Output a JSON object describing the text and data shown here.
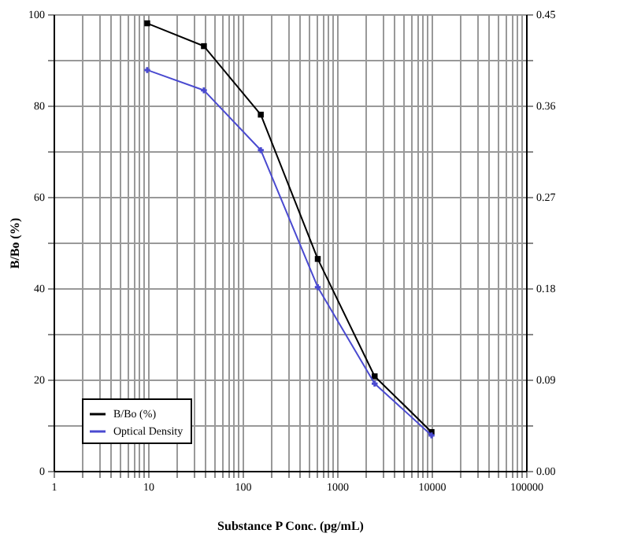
{
  "chart_data": {
    "type": "line",
    "xlabel": "Substance P Conc. (pg/mL)",
    "ylabel": "B/Bo (%)",
    "log": "x",
    "grid": true,
    "legend": "bottom left",
    "line_style": "solid",
    "xlim": [
      1,
      100000
    ],
    "xticks": [
      1,
      {
        "value": 2,
        "label": null
      },
      {
        "value": 3,
        "label": null
      },
      {
        "value": 4,
        "label": null
      },
      {
        "value": 5,
        "label": null
      },
      {
        "value": 6,
        "label": null
      },
      {
        "value": 7,
        "label": null
      },
      {
        "value": 8,
        "label": null
      },
      {
        "value": 9,
        "label": null
      },
      10,
      {
        "value": 20,
        "label": null
      },
      {
        "value": 30,
        "label": null
      },
      {
        "value": 40,
        "label": null
      },
      {
        "value": 50,
        "label": null
      },
      {
        "value": 60,
        "label": null
      },
      {
        "value": 70,
        "label": null
      },
      {
        "value": 80,
        "label": null
      },
      {
        "value": 90,
        "label": null
      },
      100,
      {
        "value": 200,
        "label": null
      },
      {
        "value": 300,
        "label": null
      },
      {
        "value": 400,
        "label": null
      },
      {
        "value": 500,
        "label": null
      },
      {
        "value": 600,
        "label": null
      },
      {
        "value": 700,
        "label": null
      },
      {
        "value": 800,
        "label": null
      },
      {
        "value": 900,
        "label": null
      },
      1000,
      {
        "value": 2000,
        "label": null
      },
      {
        "value": 3000,
        "label": null
      },
      {
        "value": 4000,
        "label": null
      },
      {
        "value": 5000,
        "label": null
      },
      {
        "value": 6000,
        "label": null
      },
      {
        "value": 7000,
        "label": null
      },
      {
        "value": 8000,
        "label": null
      },
      {
        "value": 9000,
        "label": null
      },
      10000,
      {
        "value": 20000,
        "label": null
      },
      {
        "value": 30000,
        "label": null
      },
      {
        "value": 40000,
        "label": null
      },
      {
        "value": 50000,
        "label": null
      },
      {
        "value": 60000,
        "label": null
      },
      {
        "value": 70000,
        "label": null
      },
      {
        "value": 80000,
        "label": null
      },
      {
        "value": 90000,
        "label": null
      },
      100000
    ],
    "ylim": [
      0,
      100
    ],
    "yticks": [
      0,
      {
        "value": 10,
        "label": null
      },
      20,
      {
        "value": 30,
        "label": null
      },
      40,
      {
        "value": 50,
        "label": null
      },
      60,
      {
        "value": 70,
        "label": null
      },
      80,
      {
        "value": 90,
        "label": null
      },
      100
    ],
    "y2lim": [
      0,
      0.45
    ],
    "y2ticks": [
      {
        "value": 0,
        "label": "0.00"
      },
      {
        "value": 0.045,
        "label": null
      },
      {
        "value": 0.09,
        "label": "0.09"
      },
      {
        "value": 0.135,
        "label": null
      },
      {
        "value": 0.18,
        "label": "0.18"
      },
      {
        "value": 0.225,
        "label": null
      },
      {
        "value": 0.27,
        "label": "0.27"
      },
      {
        "value": 0.315,
        "label": null
      },
      {
        "value": 0.36,
        "label": "0.36"
      },
      {
        "value": 0.405,
        "label": null
      },
      {
        "value": 0.45,
        "label": "0.45"
      }
    ],
    "x": [
      9.8,
      39,
      156,
      625,
      2500,
      10000
    ],
    "series": [
      {
        "name": "B/Bo (%)",
        "color": "#000000",
        "marker": "square",
        "values": [
          98,
          93,
          78,
          46.4,
          20.7,
          8.5
        ]
      },
      {
        "name": "Optical Density",
        "color": "#4a4ad0",
        "marker": "cross",
        "axis": "y2",
        "values": [
          0.395,
          0.375,
          0.316,
          0.181,
          0.086,
          0.035
        ]
      }
    ]
  }
}
